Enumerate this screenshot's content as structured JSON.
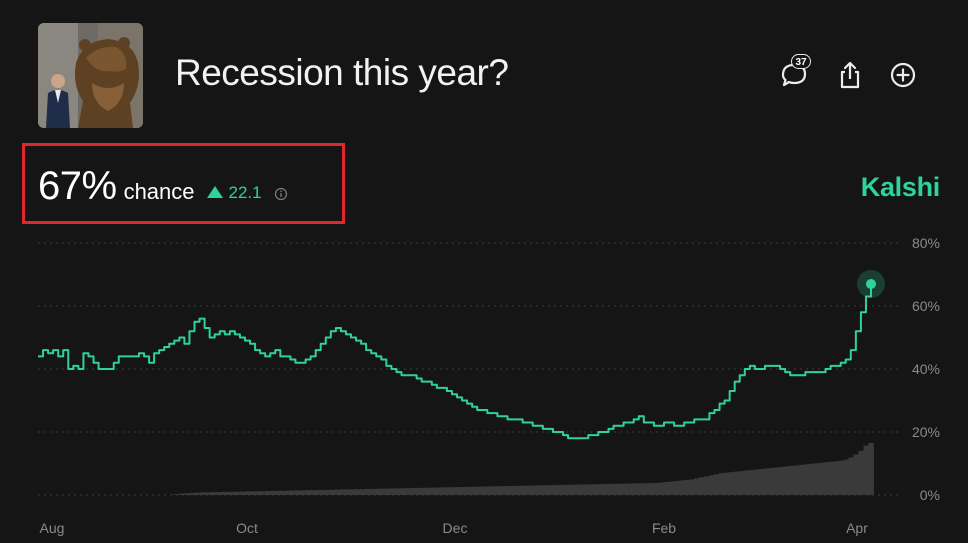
{
  "header": {
    "title": "Recession this year?",
    "comment_count": "37"
  },
  "summary": {
    "probability": "67%",
    "probability_label": "chance",
    "change": "22.1"
  },
  "brand": {
    "name": "Kalshi",
    "color": "#2fd29a"
  },
  "icons": [
    "comment-icon",
    "share-icon",
    "add-icon",
    "info-icon"
  ],
  "chart_data": {
    "type": "line",
    "y_axis_position": "right",
    "ylim": [
      0,
      80
    ],
    "y_ticks": [
      "80%",
      "60%",
      "40%",
      "20%",
      "0%"
    ],
    "y_tick_values": [
      80,
      60,
      40,
      20,
      0
    ],
    "x_tick_labels": [
      "Aug",
      "Oct",
      "Dec",
      "Feb",
      "Apr"
    ],
    "grid": "horizontal dotted",
    "line_color": "#2fd29a",
    "volume_color": "#3a3a3a",
    "series": [
      {
        "values": [
          44,
          46,
          45,
          46,
          44,
          46,
          40,
          41,
          40,
          45,
          44,
          42,
          40,
          40,
          40,
          42,
          44,
          44,
          44,
          44,
          45,
          44,
          42,
          45,
          46,
          47,
          48,
          49,
          50,
          48,
          52,
          55,
          56,
          53,
          50,
          51,
          52,
          51,
          52,
          51,
          50,
          49,
          48,
          46,
          45,
          44,
          45,
          46,
          44,
          44,
          43,
          42,
          42,
          43,
          44,
          46,
          48,
          50,
          52,
          53,
          52,
          51,
          50,
          49,
          48,
          46,
          45,
          44,
          43,
          41,
          40,
          39,
          38,
          38,
          38,
          37,
          36,
          36,
          35,
          34,
          34,
          33,
          32,
          31,
          30,
          29,
          28,
          27,
          27,
          26,
          26,
          25,
          25,
          24,
          24,
          24,
          23,
          23,
          22,
          22,
          21,
          21,
          20,
          20,
          19,
          18,
          18,
          18,
          18,
          19,
          19,
          20,
          20,
          21,
          22,
          22,
          23,
          23,
          24,
          25,
          23,
          23,
          22,
          22,
          23,
          23,
          22,
          22,
          23,
          23,
          24,
          24,
          24,
          26,
          27,
          29,
          30,
          33,
          36,
          38,
          40,
          41,
          40,
          40,
          41,
          41,
          41,
          40,
          39,
          38,
          38,
          38,
          39,
          39,
          39,
          39,
          40,
          41,
          41,
          42,
          43,
          46,
          52,
          58,
          63,
          67
        ]
      }
    ],
    "volume_fraction_series": [
      0,
      0,
      0,
      0,
      0,
      0,
      0,
      0,
      0,
      0,
      0,
      0,
      0,
      0,
      0,
      0,
      0,
      0,
      0,
      0,
      0,
      0,
      0,
      0,
      0,
      0,
      0,
      0.01,
      0.02,
      0.03,
      0.035,
      0.04,
      0.045,
      0.05,
      0.052,
      0.054,
      0.056,
      0.058,
      0.06,
      0.062,
      0.064,
      0.066,
      0.068,
      0.07,
      0.072,
      0.074,
      0.076,
      0.078,
      0.08,
      0.082,
      0.084,
      0.086,
      0.088,
      0.09,
      0.092,
      0.094,
      0.096,
      0.098,
      0.1,
      0.102,
      0.104,
      0.106,
      0.108,
      0.11,
      0.112,
      0.114,
      0.116,
      0.118,
      0.12,
      0.122,
      0.124,
      0.126,
      0.128,
      0.13,
      0.132,
      0.134,
      0.136,
      0.138,
      0.14,
      0.142,
      0.144,
      0.146,
      0.148,
      0.15,
      0.152,
      0.154,
      0.156,
      0.158,
      0.16,
      0.162,
      0.164,
      0.166,
      0.168,
      0.17,
      0.172,
      0.174,
      0.176,
      0.178,
      0.18,
      0.182,
      0.184,
      0.186,
      0.188,
      0.19,
      0.192,
      0.194,
      0.196,
      0.198,
      0.2,
      0.202,
      0.204,
      0.206,
      0.208,
      0.21,
      0.212,
      0.214,
      0.216,
      0.218,
      0.22,
      0.222,
      0.224,
      0.226,
      0.228,
      0.23,
      0.232,
      0.24,
      0.25,
      0.26,
      0.27,
      0.28,
      0.29,
      0.3,
      0.32,
      0.34,
      0.36,
      0.38,
      0.4,
      0.42,
      0.43,
      0.44,
      0.45,
      0.46,
      0.47,
      0.48,
      0.49,
      0.5,
      0.51,
      0.52,
      0.53,
      0.54,
      0.55,
      0.56,
      0.57,
      0.58,
      0.59,
      0.6,
      0.61,
      0.62,
      0.63,
      0.64,
      0.65,
      0.66,
      0.68,
      0.72,
      0.78,
      0.85,
      0.95,
      1.0
    ]
  }
}
